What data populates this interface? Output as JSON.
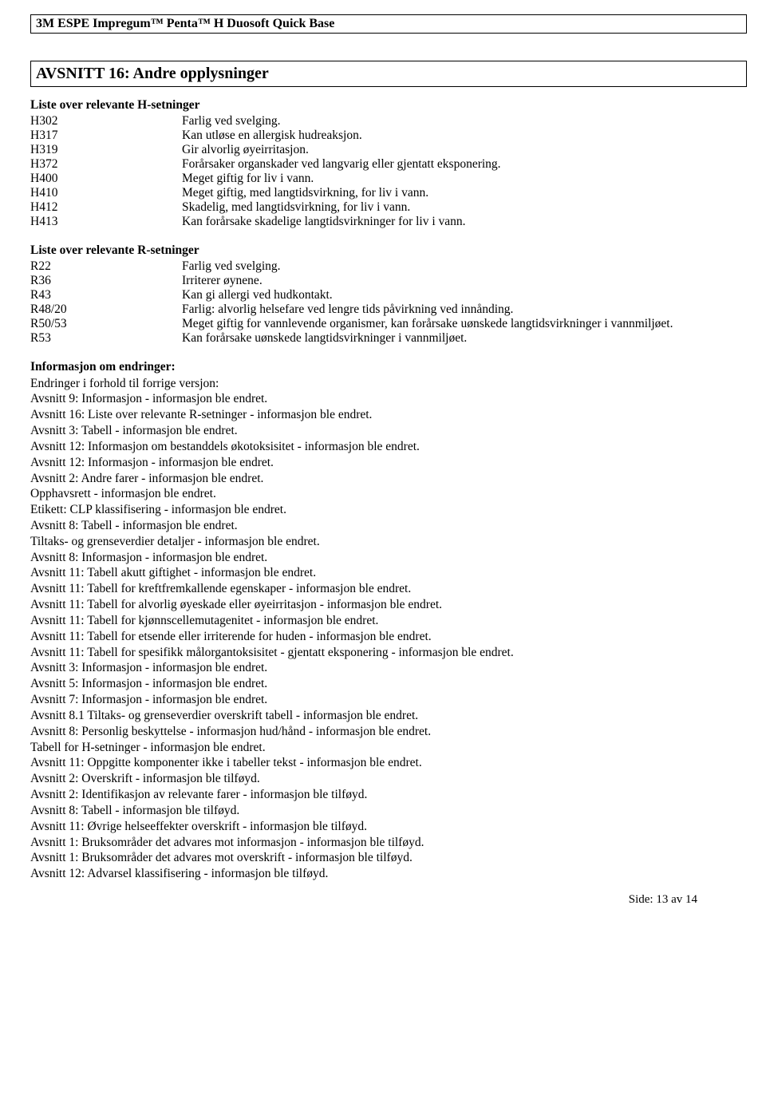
{
  "header": {
    "product": "3M ESPE Impregum™ Penta™ H Duosoft Quick Base"
  },
  "section": {
    "title": "AVSNITT 16: Andre opplysninger"
  },
  "hsetninger": {
    "heading": "Liste over relevante H-setninger",
    "rows": [
      {
        "code": "H302",
        "text": "Farlig ved svelging."
      },
      {
        "code": "H317",
        "text": "Kan utløse en allergisk hudreaksjon."
      },
      {
        "code": "H319",
        "text": "Gir alvorlig øyeirritasjon."
      },
      {
        "code": "H372",
        "text": "Forårsaker organskader ved langvarig eller gjentatt eksponering."
      },
      {
        "code": "H400",
        "text": "Meget giftig for liv i vann."
      },
      {
        "code": "H410",
        "text": "Meget giftig, med langtidsvirkning, for liv i vann."
      },
      {
        "code": "H412",
        "text": "Skadelig, med langtidsvirkning, for liv i vann."
      },
      {
        "code": "H413",
        "text": "Kan forårsake skadelige langtidsvirkninger for liv i vann."
      }
    ]
  },
  "rsetninger": {
    "heading": "Liste over relevante R-setninger",
    "rows": [
      {
        "code": "R22",
        "text": "Farlig ved svelging."
      },
      {
        "code": "R36",
        "text": "Irriterer øynene."
      },
      {
        "code": "R43",
        "text": "Kan gi allergi ved hudkontakt."
      },
      {
        "code": "R48/20",
        "text": "Farlig: alvorlig helsefare ved lengre tids påvirkning ved innånding."
      },
      {
        "code": "R50/53",
        "text": "Meget giftig for vannlevende organismer, kan forårsake uønskede langtidsvirkninger i vannmiljøet."
      },
      {
        "code": "R53",
        "text": "Kan forårsake uønskede langtidsvirkninger i vannmiljøet."
      }
    ]
  },
  "changes": {
    "heading": "Informasjon om endringer:",
    "intro": "Endringer i forhold til forrige versjon:",
    "items": [
      "Avsnitt 9: Informasjon - informasjon ble endret.",
      "Avsnitt 16: Liste over relevante R-setninger - informasjon ble endret.",
      "Avsnitt 3: Tabell - informasjon ble endret.",
      "Avsnitt 12: Informasjon om bestanddels økotoksisitet - informasjon ble endret.",
      "Avsnitt 12: Informasjon - informasjon ble endret.",
      "Avsnitt 2: Andre farer - informasjon ble endret.",
      "Opphavsrett - informasjon ble endret.",
      "Etikett: CLP klassifisering - informasjon ble endret.",
      "Avsnitt 8: Tabell - informasjon ble endret.",
      "Tiltaks- og grenseverdier detaljer - informasjon ble endret.",
      "Avsnitt 8: Informasjon - informasjon ble endret.",
      "Avsnitt 11: Tabell akutt giftighet - informasjon ble endret.",
      "Avsnitt 11: Tabell for kreftfremkallende egenskaper - informasjon ble endret.",
      "Avsnitt 11: Tabell for alvorlig øyeskade eller øyeirritasjon - informasjon ble endret.",
      "Avsnitt 11: Tabell for kjønnscellemutagenitet - informasjon ble endret.",
      "Avsnitt 11: Tabell for etsende eller irriterende for huden - informasjon ble endret.",
      "Avsnitt 11: Tabell for spesifikk målorgantoksisitet - gjentatt eksponering - informasjon ble endret.",
      "Avsnitt 3: Informasjon - informasjon ble endret.",
      "Avsnitt 5: Informasjon - informasjon ble endret.",
      "Avsnitt 7: Informasjon - informasjon ble endret.",
      "Avsnitt 8.1 Tiltaks- og grenseverdier overskrift tabell - informasjon ble endret.",
      "Avsnitt 8: Personlig beskyttelse - informasjon hud/hånd - informasjon ble endret.",
      "Tabell for H-setninger - informasjon ble endret.",
      "Avsnitt 11: Oppgitte komponenter ikke i tabeller tekst - informasjon ble endret.",
      "Avsnitt 2: Overskrift - informasjon ble tilføyd.",
      "Avsnitt 2: Identifikasjon av relevante farer - informasjon ble tilføyd.",
      "Avsnitt 8: Tabell - informasjon ble tilføyd.",
      "Avsnitt 11: Øvrige helseeffekter overskrift - informasjon ble tilføyd.",
      "Avsnitt 1: Bruksområder det advares mot informasjon - informasjon ble tilføyd.",
      "Avsnitt 1: Bruksområder det advares mot overskrift - informasjon ble tilføyd.",
      "Avsnitt 12: Advarsel klassifisering - informasjon ble tilføyd."
    ]
  },
  "footer": {
    "page_label": "Side: 13 av  14"
  }
}
